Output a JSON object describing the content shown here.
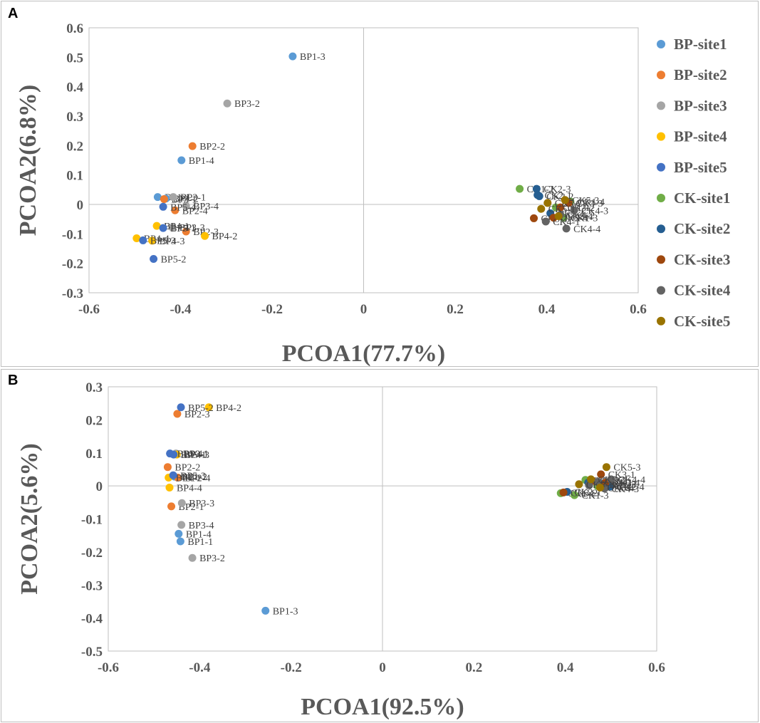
{
  "chart_data": [
    {
      "type": "scatter",
      "panel_label": "A",
      "xlabel": "PCOA1(77.7%)",
      "ylabel": "PCOA2(6.8%)",
      "xlim": [
        -0.6,
        0.6
      ],
      "ylim": [
        -0.3,
        0.6
      ],
      "xticks": [
        -0.6,
        -0.4,
        -0.2,
        0,
        0.2,
        0.4,
        0.6
      ],
      "yticks": [
        -0.3,
        -0.2,
        -0.1,
        0,
        0.1,
        0.2,
        0.3,
        0.4,
        0.5,
        0.6
      ],
      "xtick_labels": [
        "-0.6",
        "-0.4",
        "-0.2",
        "0",
        "0.2",
        "0.4",
        "0.6"
      ],
      "ytick_labels": [
        "-0.3",
        "-0.2",
        "-0.1",
        "0",
        "0.1",
        "0.2",
        "0.3",
        "0.4",
        "0.5",
        "0.6"
      ],
      "grid": false,
      "legend_position": "right",
      "series": [
        {
          "name": "BP-site1",
          "color": "#5B9BD5",
          "points": [
            {
              "x": -0.155,
              "y": 0.503,
              "label": "BP1-3"
            },
            {
              "x": -0.398,
              "y": 0.15,
              "label": "BP1-4"
            },
            {
              "x": -0.45,
              "y": 0.025,
              "label": "BP1-1"
            },
            {
              "x": -0.432,
              "y": 0.02,
              "label": "BP1-2"
            }
          ]
        },
        {
          "name": "BP-site2",
          "color": "#ED7D31",
          "points": [
            {
              "x": -0.374,
              "y": 0.198,
              "label": "BP2-2"
            },
            {
              "x": -0.436,
              "y": 0.018,
              "label": "BP2-1"
            },
            {
              "x": -0.412,
              "y": -0.02,
              "label": "BP2-4"
            },
            {
              "x": -0.388,
              "y": -0.092,
              "label": "BP2-3"
            }
          ]
        },
        {
          "name": "BP-site3",
          "color": "#A5A5A5",
          "points": [
            {
              "x": -0.298,
              "y": 0.343,
              "label": "BP3-2"
            },
            {
              "x": -0.416,
              "y": 0.025,
              "label": "BP3-1"
            },
            {
              "x": -0.388,
              "y": -0.005,
              "label": "BP3-4"
            },
            {
              "x": -0.418,
              "y": -0.078,
              "label": "BP3-3"
            }
          ]
        },
        {
          "name": "BP-site4",
          "color": "#FFC000",
          "points": [
            {
              "x": -0.347,
              "y": -0.107,
              "label": "BP4-2"
            },
            {
              "x": -0.452,
              "y": -0.073,
              "label": "BP4-1"
            },
            {
              "x": -0.496,
              "y": -0.115,
              "label": "BP4-4"
            },
            {
              "x": -0.462,
              "y": -0.123,
              "label": "BP4-3"
            }
          ]
        },
        {
          "name": "BP-site5",
          "color": "#4472C4",
          "points": [
            {
              "x": -0.459,
              "y": -0.185,
              "label": "BP5-2"
            },
            {
              "x": -0.438,
              "y": -0.008,
              "label": "BP5-4"
            },
            {
              "x": -0.438,
              "y": -0.08,
              "label": "BP5-1"
            },
            {
              "x": -0.482,
              "y": -0.122,
              "label": "BP5-3"
            }
          ]
        },
        {
          "name": "CK-site1",
          "color": "#70AD47",
          "points": [
            {
              "x": 0.341,
              "y": 0.053,
              "label": "CK1-2"
            },
            {
              "x": 0.42,
              "y": -0.01,
              "label": "CK1-1"
            },
            {
              "x": 0.437,
              "y": -0.045,
              "label": "CK1-3"
            },
            {
              "x": 0.452,
              "y": 0.01,
              "label": "CK1-4"
            }
          ]
        },
        {
          "name": "CK-site2",
          "color": "#255E91",
          "points": [
            {
              "x": 0.378,
              "y": 0.053,
              "label": "CK2-3"
            },
            {
              "x": 0.38,
              "y": 0.032,
              "label": "CK2-1"
            },
            {
              "x": 0.384,
              "y": 0.028,
              "label": "CK2-2"
            },
            {
              "x": 0.408,
              "y": -0.03,
              "label": "CK2-4"
            }
          ]
        },
        {
          "name": "CK-site3",
          "color": "#9E480E",
          "points": [
            {
              "x": 0.372,
              "y": -0.047,
              "label": "CK3-1"
            },
            {
              "x": 0.43,
              "y": -0.01,
              "label": "CK3-2"
            },
            {
              "x": 0.448,
              "y": 0.005,
              "label": "CK3-3"
            },
            {
              "x": 0.415,
              "y": -0.045,
              "label": "CK3-4"
            }
          ]
        },
        {
          "name": "CK-site4",
          "color": "#636363",
          "points": [
            {
              "x": 0.443,
              "y": -0.082,
              "label": "CK4-4"
            },
            {
              "x": 0.398,
              "y": -0.058,
              "label": "CK4-1"
            },
            {
              "x": 0.43,
              "y": -0.035,
              "label": "CK4-2"
            },
            {
              "x": 0.46,
              "y": -0.02,
              "label": "CK4-3"
            }
          ]
        },
        {
          "name": "CK-site5",
          "color": "#997300",
          "points": [
            {
              "x": 0.388,
              "y": -0.015,
              "label": "CK5-1"
            },
            {
              "x": 0.402,
              "y": 0.005,
              "label": "CK5-2"
            },
            {
              "x": 0.44,
              "y": 0.015,
              "label": "CK5-3"
            },
            {
              "x": 0.426,
              "y": -0.04,
              "label": "CK5-4"
            }
          ]
        }
      ]
    },
    {
      "type": "scatter",
      "panel_label": "B",
      "xlabel": "PCOA1(92.5%)",
      "ylabel": "PCOA2(5.6%)",
      "xlim": [
        -0.6,
        0.6
      ],
      "ylim": [
        -0.5,
        0.3
      ],
      "xticks": [
        -0.6,
        -0.4,
        -0.2,
        0,
        0.2,
        0.4,
        0.6
      ],
      "yticks": [
        -0.5,
        -0.4,
        -0.3,
        -0.2,
        -0.1,
        0,
        0.1,
        0.2,
        0.3
      ],
      "xtick_labels": [
        "-0.6",
        "-0.4",
        "-0.2",
        "0",
        "0.2",
        "0.4",
        "0.6"
      ],
      "ytick_labels": [
        "-0.5",
        "-0.4",
        "-0.3",
        "-0.2",
        "-0.1",
        "0",
        "0.1",
        "0.2",
        "0.3"
      ],
      "grid": false,
      "legend_position": "none",
      "series": [
        {
          "name": "BP-site1",
          "color": "#5B9BD5",
          "points": [
            {
              "x": -0.256,
              "y": -0.378,
              "label": "BP1-3"
            },
            {
              "x": -0.446,
              "y": -0.145,
              "label": "BP1-4"
            },
            {
              "x": -0.442,
              "y": -0.168,
              "label": "BP1-1"
            },
            {
              "x": -0.455,
              "y": 0.028,
              "label": "BP1-2"
            }
          ]
        },
        {
          "name": "BP-site2",
          "color": "#ED7D31",
          "points": [
            {
              "x": -0.449,
              "y": 0.218,
              "label": "BP2-3"
            },
            {
              "x": -0.47,
              "y": 0.057,
              "label": "BP2-2"
            },
            {
              "x": -0.462,
              "y": -0.062,
              "label": "BP2-1"
            },
            {
              "x": -0.448,
              "y": 0.025,
              "label": "BP2-4"
            }
          ]
        },
        {
          "name": "BP-site3",
          "color": "#A5A5A5",
          "points": [
            {
              "x": -0.439,
              "y": -0.052,
              "label": "BP3-3"
            },
            {
              "x": -0.44,
              "y": -0.118,
              "label": "BP3-4"
            },
            {
              "x": -0.416,
              "y": -0.218,
              "label": "BP3-2"
            },
            {
              "x": -0.452,
              "y": 0.098,
              "label": "BP3-1"
            }
          ]
        },
        {
          "name": "BP-site4",
          "color": "#FFC000",
          "points": [
            {
              "x": -0.38,
              "y": 0.238,
              "label": "BP4-2"
            },
            {
              "x": -0.466,
              "y": -0.005,
              "label": "BP4-4"
            },
            {
              "x": -0.468,
              "y": 0.025,
              "label": "BP4-1"
            },
            {
              "x": -0.45,
              "y": 0.095,
              "label": "BP4-3"
            }
          ]
        },
        {
          "name": "BP-site5",
          "color": "#4472C4",
          "points": [
            {
              "x": -0.441,
              "y": 0.238,
              "label": "BP5-2"
            },
            {
              "x": -0.465,
              "y": 0.098,
              "label": "BP5-4"
            },
            {
              "x": -0.457,
              "y": 0.095,
              "label": "BP5-1"
            },
            {
              "x": -0.458,
              "y": 0.032,
              "label": "BP5-3"
            }
          ]
        },
        {
          "name": "CK-site1",
          "color": "#70AD47",
          "points": [
            {
              "x": 0.39,
              "y": -0.022,
              "label": "CK1-1"
            },
            {
              "x": 0.42,
              "y": -0.028,
              "label": "CK1-3"
            },
            {
              "x": 0.444,
              "y": 0.018,
              "label": "CK1-2"
            },
            {
              "x": 0.47,
              "y": 0.0,
              "label": "CK1-4"
            }
          ]
        },
        {
          "name": "CK-site2",
          "color": "#255E91",
          "points": [
            {
              "x": 0.404,
              "y": -0.018,
              "label": "CK2-1"
            },
            {
              "x": 0.45,
              "y": 0.01,
              "label": "CK2-2"
            },
            {
              "x": 0.48,
              "y": 0.005,
              "label": "CK2-3"
            },
            {
              "x": 0.498,
              "y": -0.002,
              "label": "CK2-4"
            }
          ]
        },
        {
          "name": "CK-site3",
          "color": "#9E480E",
          "points": [
            {
              "x": 0.478,
              "y": 0.035,
              "label": "CK3-1"
            },
            {
              "x": 0.396,
              "y": -0.02,
              "label": "CK3-2"
            },
            {
              "x": 0.46,
              "y": 0.015,
              "label": "CK3-3"
            },
            {
              "x": 0.488,
              "y": 0.01,
              "label": "CK3-4"
            }
          ]
        },
        {
          "name": "CK-site4",
          "color": "#636363",
          "points": [
            {
              "x": 0.452,
              "y": 0.002,
              "label": "CK4-1"
            },
            {
              "x": 0.47,
              "y": 0.012,
              "label": "CK4-2"
            },
            {
              "x": 0.486,
              "y": -0.008,
              "label": "CK4-3"
            },
            {
              "x": 0.5,
              "y": 0.02,
              "label": "CK4-4"
            }
          ]
        },
        {
          "name": "CK-site5",
          "color": "#997300",
          "points": [
            {
              "x": 0.49,
              "y": 0.057,
              "label": "CK5-3"
            },
            {
              "x": 0.43,
              "y": 0.005,
              "label": "CK5-1"
            },
            {
              "x": 0.456,
              "y": 0.02,
              "label": "CK5-2"
            },
            {
              "x": 0.476,
              "y": -0.005,
              "label": "CK5-4"
            }
          ]
        }
      ]
    }
  ]
}
